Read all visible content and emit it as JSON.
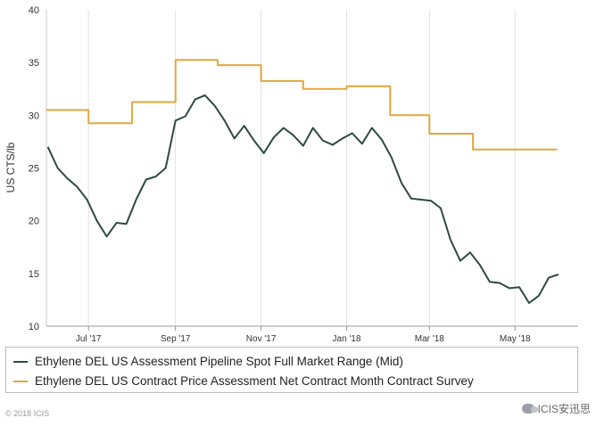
{
  "chart_data": {
    "type": "line",
    "ylabel": "US CTS/lb",
    "ylim": [
      10,
      40
    ],
    "yticks": [
      10,
      15,
      20,
      25,
      30,
      35,
      40
    ],
    "xlim": [
      "2017-06-01",
      "2018-06-15"
    ],
    "xticks": [
      {
        "date": "2017-07-01",
        "label": "Jul '17"
      },
      {
        "date": "2017-09-01",
        "label": "Sep '17"
      },
      {
        "date": "2017-11-01",
        "label": "Nov '17"
      },
      {
        "date": "2018-01-01",
        "label": "Jan '18"
      },
      {
        "date": "2018-03-01",
        "label": "Mar '18"
      },
      {
        "date": "2018-05-01",
        "label": "May '18"
      }
    ],
    "grid": "vertical",
    "legend_position": "bottom",
    "series": [
      {
        "name": "Ethylene DEL US Assessment Pipeline Spot Full Market Range (Mid)",
        "color": "#2e4a40",
        "step": false,
        "points": [
          [
            "2017-06-02",
            27.0
          ],
          [
            "2017-06-09",
            25.0
          ],
          [
            "2017-06-16",
            24.0
          ],
          [
            "2017-06-23",
            23.2
          ],
          [
            "2017-06-30",
            22.0
          ],
          [
            "2017-07-07",
            20.0
          ],
          [
            "2017-07-14",
            18.5
          ],
          [
            "2017-07-21",
            19.8
          ],
          [
            "2017-07-28",
            19.7
          ],
          [
            "2017-08-04",
            22.0
          ],
          [
            "2017-08-11",
            23.9
          ],
          [
            "2017-08-18",
            24.2
          ],
          [
            "2017-08-25",
            25.0
          ],
          [
            "2017-09-01",
            29.5
          ],
          [
            "2017-09-08",
            29.9
          ],
          [
            "2017-09-15",
            31.5
          ],
          [
            "2017-09-22",
            31.9
          ],
          [
            "2017-09-29",
            30.9
          ],
          [
            "2017-10-06",
            29.5
          ],
          [
            "2017-10-13",
            27.8
          ],
          [
            "2017-10-20",
            29.0
          ],
          [
            "2017-10-27",
            27.6
          ],
          [
            "2017-11-03",
            26.4
          ],
          [
            "2017-11-10",
            27.9
          ],
          [
            "2017-11-17",
            28.8
          ],
          [
            "2017-11-24",
            28.1
          ],
          [
            "2017-12-01",
            27.1
          ],
          [
            "2017-12-08",
            28.8
          ],
          [
            "2017-12-15",
            27.6
          ],
          [
            "2017-12-22",
            27.2
          ],
          [
            "2017-12-29",
            27.8
          ],
          [
            "2018-01-05",
            28.3
          ],
          [
            "2018-01-12",
            27.3
          ],
          [
            "2018-01-19",
            28.8
          ],
          [
            "2018-01-26",
            27.7
          ],
          [
            "2018-02-02",
            26.0
          ],
          [
            "2018-02-09",
            23.6
          ],
          [
            "2018-02-16",
            22.1
          ],
          [
            "2018-02-23",
            22.0
          ],
          [
            "2018-03-02",
            21.9
          ],
          [
            "2018-03-09",
            21.2
          ],
          [
            "2018-03-16",
            18.2
          ],
          [
            "2018-03-23",
            16.2
          ],
          [
            "2018-03-30",
            17.0
          ],
          [
            "2018-04-06",
            15.8
          ],
          [
            "2018-04-13",
            14.2
          ],
          [
            "2018-04-20",
            14.1
          ],
          [
            "2018-04-27",
            13.6
          ],
          [
            "2018-05-04",
            13.7
          ],
          [
            "2018-05-11",
            12.2
          ],
          [
            "2018-05-18",
            12.9
          ],
          [
            "2018-05-25",
            14.6
          ],
          [
            "2018-06-01",
            14.9
          ]
        ]
      },
      {
        "name": "Ethylene DEL US Contract Price Assessment Net Contract Month Contract Survey",
        "color": "#e3a73c",
        "step": true,
        "points": [
          [
            "2017-06-01",
            30.5
          ],
          [
            "2017-07-01",
            29.25
          ],
          [
            "2017-08-01",
            31.25
          ],
          [
            "2017-09-01",
            35.25
          ],
          [
            "2017-10-01",
            34.75
          ],
          [
            "2017-11-01",
            33.25
          ],
          [
            "2017-12-01",
            32.5
          ],
          [
            "2018-01-01",
            32.75
          ],
          [
            "2018-02-01",
            30.0
          ],
          [
            "2018-03-01",
            28.25
          ],
          [
            "2018-04-01",
            26.75
          ],
          [
            "2018-05-01",
            26.75
          ]
        ]
      }
    ],
    "annotations": [
      "© 2018 ICIS",
      "ICIS安迅思"
    ]
  }
}
